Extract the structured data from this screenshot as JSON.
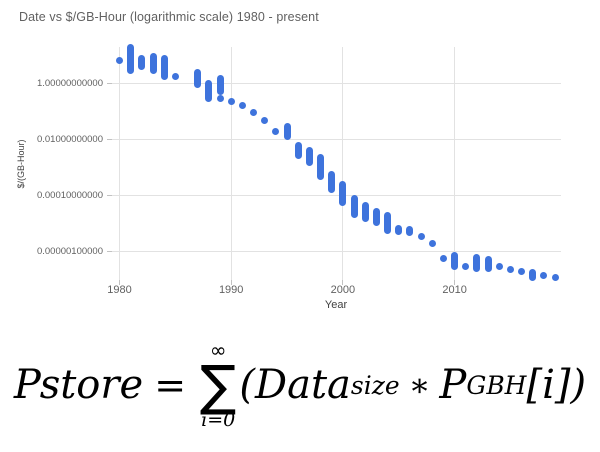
{
  "chart": {
    "title": "Date vs $/GB-Hour (logarithmic scale) 1980 - present",
    "y_axis": {
      "title": "$/(GB-Hour)",
      "tick_labels": [
        "1.00000000000",
        "0.01000000000",
        "0.00010000000",
        "0.00000100000"
      ]
    },
    "x_axis": {
      "title": "Year",
      "tick_labels": [
        "1980",
        "1990",
        "2000",
        "2010"
      ]
    }
  },
  "colors": {
    "point": "#3e73dc",
    "gridline": "#e2e2e2",
    "tick": "#c2c2c2",
    "axis_text": "#616161",
    "axis_title_text": "#424242",
    "title_text": "#616161",
    "formula": "#000000"
  },
  "chart_data": {
    "type": "scatter",
    "title": "Date vs $/GB-Hour (logarithmic scale) 1980 - present",
    "xlabel": "Year",
    "ylabel": "$/(GB-Hour)",
    "y_scale": "log",
    "x_ticks": [
      1980,
      1990,
      2000,
      2010
    ],
    "y_ticks": [
      1,
      0.01,
      0.0001,
      1e-06
    ],
    "x_range": [
      1979.3,
      2019.6
    ],
    "y_range": [
      9e-08,
      20
    ],
    "legend": "none",
    "note": "each entry is one year-column blob; high/low are the $/GB-hour extent of the overlapping points",
    "points": [
      {
        "year": 1980,
        "high": 6.4,
        "low": 6.4
      },
      {
        "year": 1981,
        "high": 17.8,
        "low": 2.7
      },
      {
        "year": 1982,
        "high": 7.2,
        "low": 4.0
      },
      {
        "year": 1983,
        "high": 9.2,
        "low": 2.9
      },
      {
        "year": 1984,
        "high": 7.8,
        "low": 1.64
      },
      {
        "year": 1985,
        "high": 1.64,
        "low": 1.64
      },
      {
        "year": 1987,
        "high": 2.28,
        "low": 0.85
      },
      {
        "year": 1988,
        "high": 1.0,
        "low": 0.29
      },
      {
        "year": 1989,
        "high": 1.5,
        "low": 0.48
      },
      {
        "year": 1989,
        "high": 0.29,
        "low": 0.29
      },
      {
        "year": 1990,
        "high": 0.21,
        "low": 0.21
      },
      {
        "year": 1991,
        "high": 0.151,
        "low": 0.151
      },
      {
        "year": 1992,
        "high": 0.088,
        "low": 0.088
      },
      {
        "year": 1993,
        "high": 0.044,
        "low": 0.044
      },
      {
        "year": 1994,
        "high": 0.0193,
        "low": 0.0193
      },
      {
        "year": 1995,
        "high": 0.0269,
        "low": 0.0118
      },
      {
        "year": 1996,
        "high": 0.0061,
        "low": 0.00268
      },
      {
        "year": 1997,
        "high": 0.004,
        "low": 0.0015
      },
      {
        "year": 1998,
        "high": 0.00211,
        "low": 0.00044
      },
      {
        "year": 1999,
        "high": 0.00052,
        "low": 0.000152
      },
      {
        "year": 2000,
        "high": 0.000229,
        "low": 5.18e-05
      },
      {
        "year": 2001,
        "high": 7.76e-05,
        "low": 1.93e-05
      },
      {
        "year": 2002,
        "high": 4.37e-05,
        "low": 1.5e-05
      },
      {
        "year": 2003,
        "high": 2.68e-05,
        "low": 1e-05
      },
      {
        "year": 2004,
        "high": 1.93e-05,
        "low": 5.6e-06
      },
      {
        "year": 2005,
        "high": 6.6e-06,
        "low": 4.8e-06
      },
      {
        "year": 2006,
        "high": 6.1e-06,
        "low": 4.4e-06
      },
      {
        "year": 2007,
        "high": 3.3e-06,
        "low": 3.3e-06
      },
      {
        "year": 2008,
        "high": 1.9e-06,
        "low": 1.9e-06
      },
      {
        "year": 2009,
        "high": 5.6e-07,
        "low": 5.6e-07
      },
      {
        "year": 2010,
        "high": 7.1e-07,
        "low": 2.7e-07
      },
      {
        "year": 2011,
        "high": 2.9e-07,
        "low": 2.9e-07
      },
      {
        "year": 2012,
        "high": 6.1e-07,
        "low": 2.4e-07
      },
      {
        "year": 2013,
        "high": 4.8e-07,
        "low": 2.4e-07
      },
      {
        "year": 2014,
        "high": 2.7e-07,
        "low": 2.7e-07
      },
      {
        "year": 2015,
        "high": 2.1e-07,
        "low": 2.1e-07
      },
      {
        "year": 2016,
        "high": 1.9e-07,
        "low": 1.9e-07
      },
      {
        "year": 2017,
        "high": 1.75e-07,
        "low": 1.17e-07
      },
      {
        "year": 2018,
        "high": 1.37e-07,
        "low": 1.37e-07
      },
      {
        "year": 2019,
        "high": 1.17e-07,
        "low": 1.17e-07
      }
    ]
  },
  "formula": {
    "lhs": "Pstore",
    "eq": "=",
    "sum_upper": "∞",
    "sum_symbol": "∑",
    "sum_lower": "i=0",
    "lparen": "(",
    "term1": "Data",
    "term1_sub": "size",
    "operator": "∗",
    "term2": "P",
    "term2_sub": "GBH",
    "index": "[i]",
    "rparen": ")"
  }
}
